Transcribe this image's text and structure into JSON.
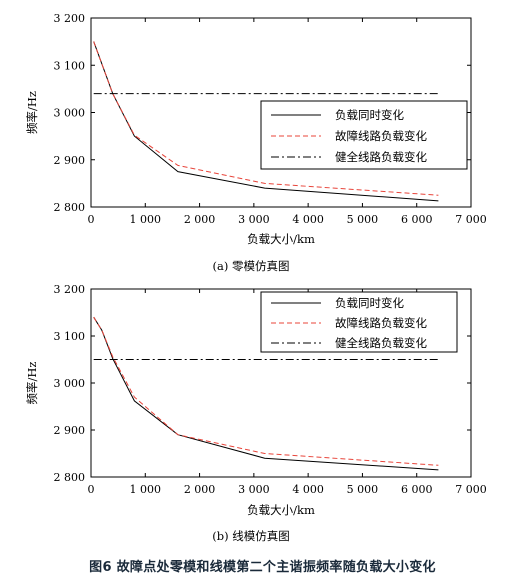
{
  "chart_data": [
    {
      "type": "line",
      "subtitle": "(a) 零模仿真图",
      "xlabel": "负载大小/km",
      "ylabel": "频率/Hz",
      "xlim": [
        0,
        7000
      ],
      "ylim": [
        2800,
        3200
      ],
      "xticks": [
        0,
        1000,
        2000,
        3000,
        4000,
        5000,
        6000,
        7000
      ],
      "xtick_labels": [
        "0",
        "1 000",
        "2 000",
        "3 000",
        "4 000",
        "5 000",
        "6 000",
        "7 000"
      ],
      "yticks": [
        2800,
        2900,
        3000,
        3100,
        3200
      ],
      "ytick_labels": [
        "2 800",
        "2 900",
        "3 000",
        "3 100",
        "3 200"
      ],
      "grid": false,
      "legend_position": "right",
      "series": [
        {
          "name": "负载同时变化",
          "style": "solid",
          "color": "#000000",
          "x": [
            50,
            400,
            800,
            1600,
            3200,
            6400
          ],
          "y": [
            3150,
            3040,
            2950,
            2875,
            2840,
            2813
          ]
        },
        {
          "name": "故障线路负载变化",
          "style": "dashed",
          "color": "#e8443a",
          "x": [
            50,
            400,
            800,
            1600,
            3200,
            6400
          ],
          "y": [
            3150,
            3040,
            2952,
            2888,
            2850,
            2825
          ]
        },
        {
          "name": "健全线路负载变化",
          "style": "dashdot",
          "color": "#000000",
          "x": [
            50,
            6400
          ],
          "y": [
            3040,
            3040
          ]
        }
      ]
    },
    {
      "type": "line",
      "subtitle": "(b) 线模仿真图",
      "xlabel": "负载大小/km",
      "ylabel": "频率/Hz",
      "xlim": [
        0,
        7000
      ],
      "ylim": [
        2800,
        3200
      ],
      "xticks": [
        0,
        1000,
        2000,
        3000,
        4000,
        5000,
        6000,
        7000
      ],
      "xtick_labels": [
        "0",
        "1 000",
        "2 000",
        "3 000",
        "4 000",
        "5 000",
        "6 000",
        "7 000"
      ],
      "yticks": [
        2800,
        2900,
        3000,
        3100,
        3200
      ],
      "ytick_labels": [
        "2 800",
        "2 900",
        "3 000",
        "3 100",
        "3 200"
      ],
      "grid": false,
      "legend_position": "top-right",
      "series": [
        {
          "name": "负载同时变化",
          "style": "solid",
          "color": "#000000",
          "x": [
            50,
            200,
            400,
            800,
            1600,
            3200,
            6400
          ],
          "y": [
            3140,
            3112,
            3052,
            2962,
            2890,
            2840,
            2815
          ]
        },
        {
          "name": "故障线路负载变化",
          "style": "dashed",
          "color": "#e8443a",
          "x": [
            50,
            200,
            400,
            800,
            1600,
            3200,
            6400
          ],
          "y": [
            3140,
            3112,
            3056,
            2970,
            2890,
            2850,
            2825
          ]
        },
        {
          "name": "健全线路负载变化",
          "style": "dashdot",
          "color": "#000000",
          "x": [
            50,
            6400
          ],
          "y": [
            3050,
            3050
          ]
        }
      ]
    }
  ],
  "caption": "图6   故障点处零模和线模第二个主谐振频率随负载大小变化"
}
